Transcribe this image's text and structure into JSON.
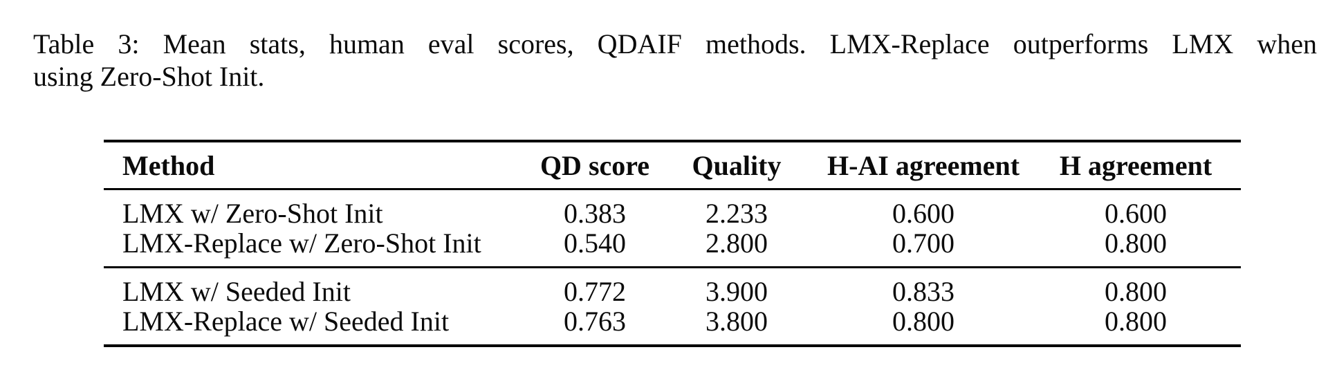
{
  "page": {
    "background": "#ffffff",
    "text_color": "#0b0b0b",
    "rule_color": "#000000"
  },
  "caption": {
    "line1": "Table 3: Mean stats, human eval scores, QDAIF methods. LMX-Replace outperforms LMX when",
    "line2": "using Zero-Shot Init."
  },
  "table": {
    "columns": [
      "Method",
      "QD score",
      "Quality",
      "H-AI agreement",
      "H agreement"
    ],
    "groups": [
      {
        "rows": [
          {
            "method": "LMX w/ Zero-Shot Init",
            "qd": "0.383",
            "quality": "2.233",
            "hai": "0.600",
            "h": "0.600"
          },
          {
            "method": "LMX-Replace w/ Zero-Shot Init",
            "qd": "0.540",
            "quality": "2.800",
            "hai": "0.700",
            "h": "0.800"
          }
        ]
      },
      {
        "rows": [
          {
            "method": "LMX w/ Seeded Init",
            "qd": "0.772",
            "quality": "3.900",
            "hai": "0.833",
            "h": "0.800"
          },
          {
            "method": "LMX-Replace w/ Seeded Init",
            "qd": "0.763",
            "quality": "3.800",
            "hai": "0.800",
            "h": "0.800"
          }
        ]
      }
    ]
  }
}
